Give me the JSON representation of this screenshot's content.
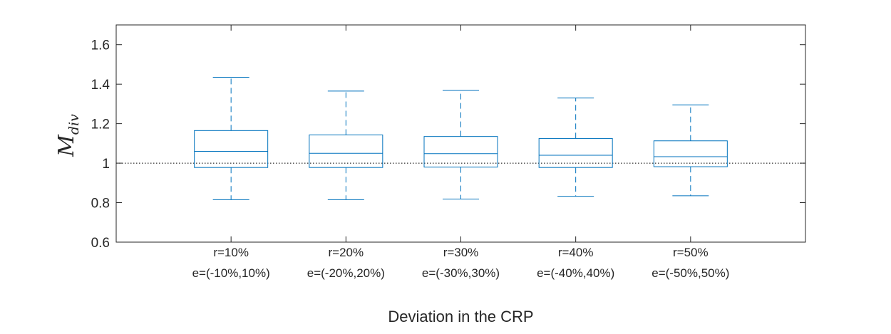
{
  "chart_data": {
    "type": "box",
    "title": "",
    "xlabel": "Deviation in the CRP",
    "ylabel": "M",
    "ylabel_subscript": "div",
    "ylim": [
      0.6,
      1.7
    ],
    "yticks": [
      0.6,
      0.8,
      1,
      1.2,
      1.4,
      1.6
    ],
    "ytick_labels": [
      "0.6",
      "0.8",
      "1",
      "1.2",
      "1.4",
      "1.6"
    ],
    "xlim": [
      0,
      6
    ],
    "reference_line": 1,
    "grid": false,
    "legend": "none",
    "box_color": "#0072BD",
    "reference_line_color": "#000000",
    "categories": [
      {
        "line1": "r=10%",
        "line2": "e=(-10%,10%)"
      },
      {
        "line1": "r=20%",
        "line2": "e=(-20%,20%)"
      },
      {
        "line1": "r=30%",
        "line2": "e=(-30%,30%)"
      },
      {
        "line1": "r=40%",
        "line2": "e=(-40%,40%)"
      },
      {
        "line1": "r=50%",
        "line2": "e=(-50%,50%)"
      }
    ],
    "boxes": [
      {
        "min": 0.815,
        "q1": 0.978,
        "median": 1.06,
        "q3": 1.165,
        "max": 1.435
      },
      {
        "min": 0.815,
        "q1": 0.978,
        "median": 1.05,
        "q3": 1.143,
        "max": 1.365
      },
      {
        "min": 0.818,
        "q1": 0.98,
        "median": 1.048,
        "q3": 1.135,
        "max": 1.368
      },
      {
        "min": 0.832,
        "q1": 0.978,
        "median": 1.04,
        "q3": 1.125,
        "max": 1.33
      },
      {
        "min": 0.835,
        "q1": 0.982,
        "median": 1.033,
        "q3": 1.113,
        "max": 1.295
      }
    ]
  }
}
